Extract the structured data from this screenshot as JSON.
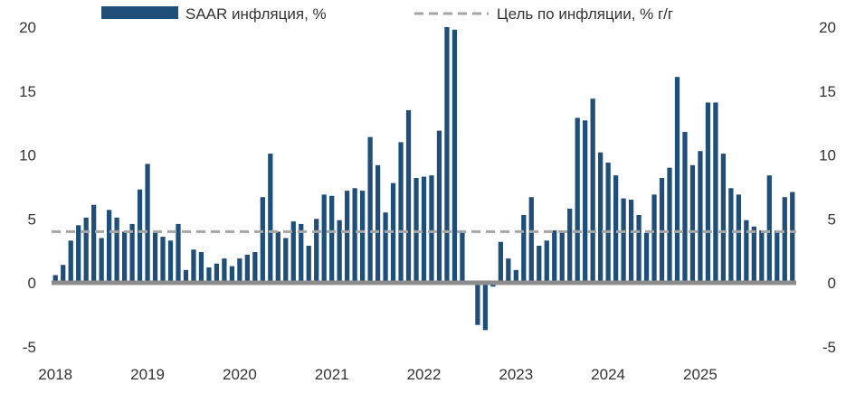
{
  "chart_data": {
    "type": "bar",
    "legend_position": "top",
    "grid": false,
    "ylim": [
      -5,
      20
    ],
    "yticks": [
      "-5",
      "0",
      "5",
      "10",
      "15",
      "20"
    ],
    "xticks": [
      "2018",
      "2019",
      "2020",
      "2021",
      "2022",
      "2023",
      "2024",
      "2025"
    ],
    "x_start": "2018-01",
    "series": [
      {
        "name": "SAAR инфляция, %",
        "color": "#1f4e79",
        "values": [
          0.6,
          1.4,
          3.3,
          4.5,
          5.1,
          6.1,
          3.5,
          5.7,
          5.1,
          4.0,
          4.6,
          7.3,
          9.3,
          4.0,
          3.6,
          3.3,
          4.6,
          1.0,
          2.6,
          2.4,
          1.2,
          1.5,
          1.9,
          1.3,
          1.9,
          2.2,
          2.4,
          6.7,
          10.1,
          4.0,
          3.5,
          4.8,
          4.6,
          2.9,
          5.0,
          6.9,
          6.8,
          4.9,
          7.2,
          7.4,
          7.2,
          11.4,
          9.2,
          5.5,
          7.8,
          11.0,
          13.5,
          8.2,
          8.3,
          8.4,
          11.9,
          20.0,
          19.8,
          4.1,
          0,
          -3.3,
          -3.7,
          -0.3,
          3.2,
          1.9,
          1.0,
          5.3,
          6.7,
          2.9,
          3.3,
          4.1,
          4.0,
          5.8,
          12.9,
          12.7,
          14.4,
          10.2,
          9.4,
          8.4,
          6.6,
          6.5,
          5.3,
          3.9,
          6.9,
          8.2,
          9.0,
          16.1,
          11.8,
          9.2,
          10.3,
          14.1,
          14.1,
          10.1,
          7.4,
          6.9,
          4.9,
          4.4,
          4.1,
          8.4,
          4.1,
          6.7,
          7.1
        ]
      },
      {
        "name": "Цель по инфляции, % г/г",
        "color": "#a6a6a6",
        "style": "dashed",
        "value": 4
      }
    ]
  }
}
